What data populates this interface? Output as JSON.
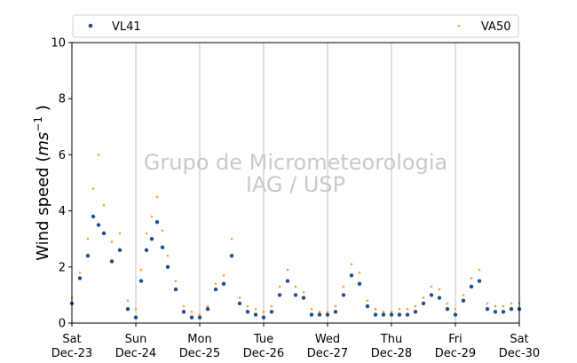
{
  "chart_data": {
    "type": "scatter",
    "title": "",
    "xlabel": "",
    "ylabel": "Wind speed (ms⁻¹ )",
    "ylabel_parts": {
      "main": "Wind speed (",
      "unit": "ms",
      "exp": "−1",
      "close": " )"
    },
    "ylim": [
      0,
      10
    ],
    "yticks": [
      0,
      2,
      4,
      6,
      8,
      10
    ],
    "xlim": [
      "2023-12-23",
      "2023-12-30"
    ],
    "xticks": [
      {
        "day": "Sat",
        "date": "Dec-23"
      },
      {
        "day": "Sun",
        "date": "Dec-24"
      },
      {
        "day": "Mon",
        "date": "Dec-25"
      },
      {
        "day": "Tue",
        "date": "Dec-26"
      },
      {
        "day": "Wed",
        "date": "Dec-27"
      },
      {
        "day": "Thu",
        "date": "Dec-28"
      },
      {
        "day": "Fri",
        "date": "Dec-29"
      },
      {
        "day": "Sat",
        "date": "Dec-30"
      }
    ],
    "grid": "vertical at day boundaries",
    "legend_position": "top",
    "watermark": {
      "line1": "Grupo de Micrometeorologia",
      "line2": "IAG / USP"
    },
    "series": [
      {
        "name": "VL41",
        "color": "#1f4e8c",
        "marker": "dot",
        "x": [
          "2023-12-23 00:00",
          "2023-12-23 03:00",
          "2023-12-23 06:00",
          "2023-12-23 08:00",
          "2023-12-23 10:00",
          "2023-12-23 12:00",
          "2023-12-23 15:00",
          "2023-12-23 18:00",
          "2023-12-23 21:00",
          "2023-12-24 00:00",
          "2023-12-24 02:00",
          "2023-12-24 04:00",
          "2023-12-24 06:00",
          "2023-12-24 08:00",
          "2023-12-24 10:00",
          "2023-12-24 12:00",
          "2023-12-24 15:00",
          "2023-12-24 18:00",
          "2023-12-24 21:00",
          "2023-12-25 00:00",
          "2023-12-25 03:00",
          "2023-12-25 06:00",
          "2023-12-25 09:00",
          "2023-12-25 12:00",
          "2023-12-25 15:00",
          "2023-12-25 18:00",
          "2023-12-25 21:00",
          "2023-12-26 00:00",
          "2023-12-26 03:00",
          "2023-12-26 06:00",
          "2023-12-26 09:00",
          "2023-12-26 12:00",
          "2023-12-26 15:00",
          "2023-12-26 18:00",
          "2023-12-26 21:00",
          "2023-12-27 00:00",
          "2023-12-27 03:00",
          "2023-12-27 06:00",
          "2023-12-27 09:00",
          "2023-12-27 12:00",
          "2023-12-27 15:00",
          "2023-12-27 18:00",
          "2023-12-27 21:00",
          "2023-12-28 00:00",
          "2023-12-28 03:00",
          "2023-12-28 06:00",
          "2023-12-28 09:00",
          "2023-12-28 12:00",
          "2023-12-28 15:00",
          "2023-12-28 18:00",
          "2023-12-28 21:00",
          "2023-12-29 00:00",
          "2023-12-29 03:00",
          "2023-12-29 06:00",
          "2023-12-29 09:00",
          "2023-12-29 12:00",
          "2023-12-29 15:00",
          "2023-12-29 18:00",
          "2023-12-29 21:00",
          "2023-12-30 00:00"
        ],
        "y": [
          0.7,
          1.6,
          2.4,
          3.8,
          3.5,
          3.2,
          2.2,
          2.6,
          0.5,
          0.2,
          1.5,
          2.6,
          3.0,
          3.6,
          2.7,
          2.0,
          1.2,
          0.4,
          0.2,
          0.2,
          0.5,
          1.2,
          1.4,
          2.4,
          0.7,
          0.4,
          0.3,
          0.2,
          0.4,
          1.0,
          1.5,
          1.0,
          0.9,
          0.3,
          0.3,
          0.3,
          0.4,
          1.0,
          1.7,
          1.4,
          0.6,
          0.3,
          0.3,
          0.3,
          0.3,
          0.3,
          0.4,
          0.7,
          1.0,
          0.9,
          0.5,
          0.3,
          0.8,
          1.3,
          1.5,
          0.5,
          0.4,
          0.4,
          0.5,
          0.5
        ]
      },
      {
        "name": "VA50",
        "color": "#ff9f27",
        "marker": "dot-small",
        "x": [
          "2023-12-23 00:00",
          "2023-12-23 03:00",
          "2023-12-23 06:00",
          "2023-12-23 08:00",
          "2023-12-23 10:00",
          "2023-12-23 12:00",
          "2023-12-23 15:00",
          "2023-12-23 18:00",
          "2023-12-23 21:00",
          "2023-12-24 00:00",
          "2023-12-24 02:00",
          "2023-12-24 04:00",
          "2023-12-24 06:00",
          "2023-12-24 08:00",
          "2023-12-24 10:00",
          "2023-12-24 12:00",
          "2023-12-24 15:00",
          "2023-12-24 18:00",
          "2023-12-24 21:00",
          "2023-12-25 00:00",
          "2023-12-25 03:00",
          "2023-12-25 06:00",
          "2023-12-25 09:00",
          "2023-12-25 12:00",
          "2023-12-25 15:00",
          "2023-12-25 18:00",
          "2023-12-25 21:00",
          "2023-12-26 00:00",
          "2023-12-26 03:00",
          "2023-12-26 06:00",
          "2023-12-26 09:00",
          "2023-12-26 12:00",
          "2023-12-26 15:00",
          "2023-12-26 18:00",
          "2023-12-26 21:00",
          "2023-12-27 00:00",
          "2023-12-27 03:00",
          "2023-12-27 06:00",
          "2023-12-27 09:00",
          "2023-12-27 12:00",
          "2023-12-27 15:00",
          "2023-12-27 18:00",
          "2023-12-27 21:00",
          "2023-12-28 00:00",
          "2023-12-28 03:00",
          "2023-12-28 06:00",
          "2023-12-28 09:00",
          "2023-12-28 12:00",
          "2023-12-28 15:00",
          "2023-12-28 18:00",
          "2023-12-28 21:00",
          "2023-12-29 00:00",
          "2023-12-29 03:00",
          "2023-12-29 06:00",
          "2023-12-29 09:00",
          "2023-12-29 12:00",
          "2023-12-29 15:00",
          "2023-12-29 18:00",
          "2023-12-29 21:00",
          "2023-12-30 00:00"
        ],
        "y": [
          0.9,
          1.8,
          3.0,
          4.8,
          6.0,
          4.2,
          2.9,
          3.2,
          0.8,
          0.5,
          1.9,
          3.2,
          3.8,
          4.5,
          3.3,
          2.4,
          1.5,
          0.6,
          0.4,
          0.3,
          0.6,
          1.4,
          1.7,
          3.0,
          0.9,
          0.6,
          0.5,
          0.4,
          0.6,
          1.3,
          1.9,
          1.3,
          1.1,
          0.5,
          0.4,
          0.4,
          0.6,
          1.3,
          2.1,
          1.8,
          0.8,
          0.5,
          0.4,
          0.4,
          0.5,
          0.5,
          0.6,
          0.9,
          1.3,
          1.2,
          0.7,
          0.5,
          1.0,
          1.6,
          1.9,
          0.7,
          0.6,
          0.6,
          0.7,
          0.7
        ]
      }
    ]
  }
}
